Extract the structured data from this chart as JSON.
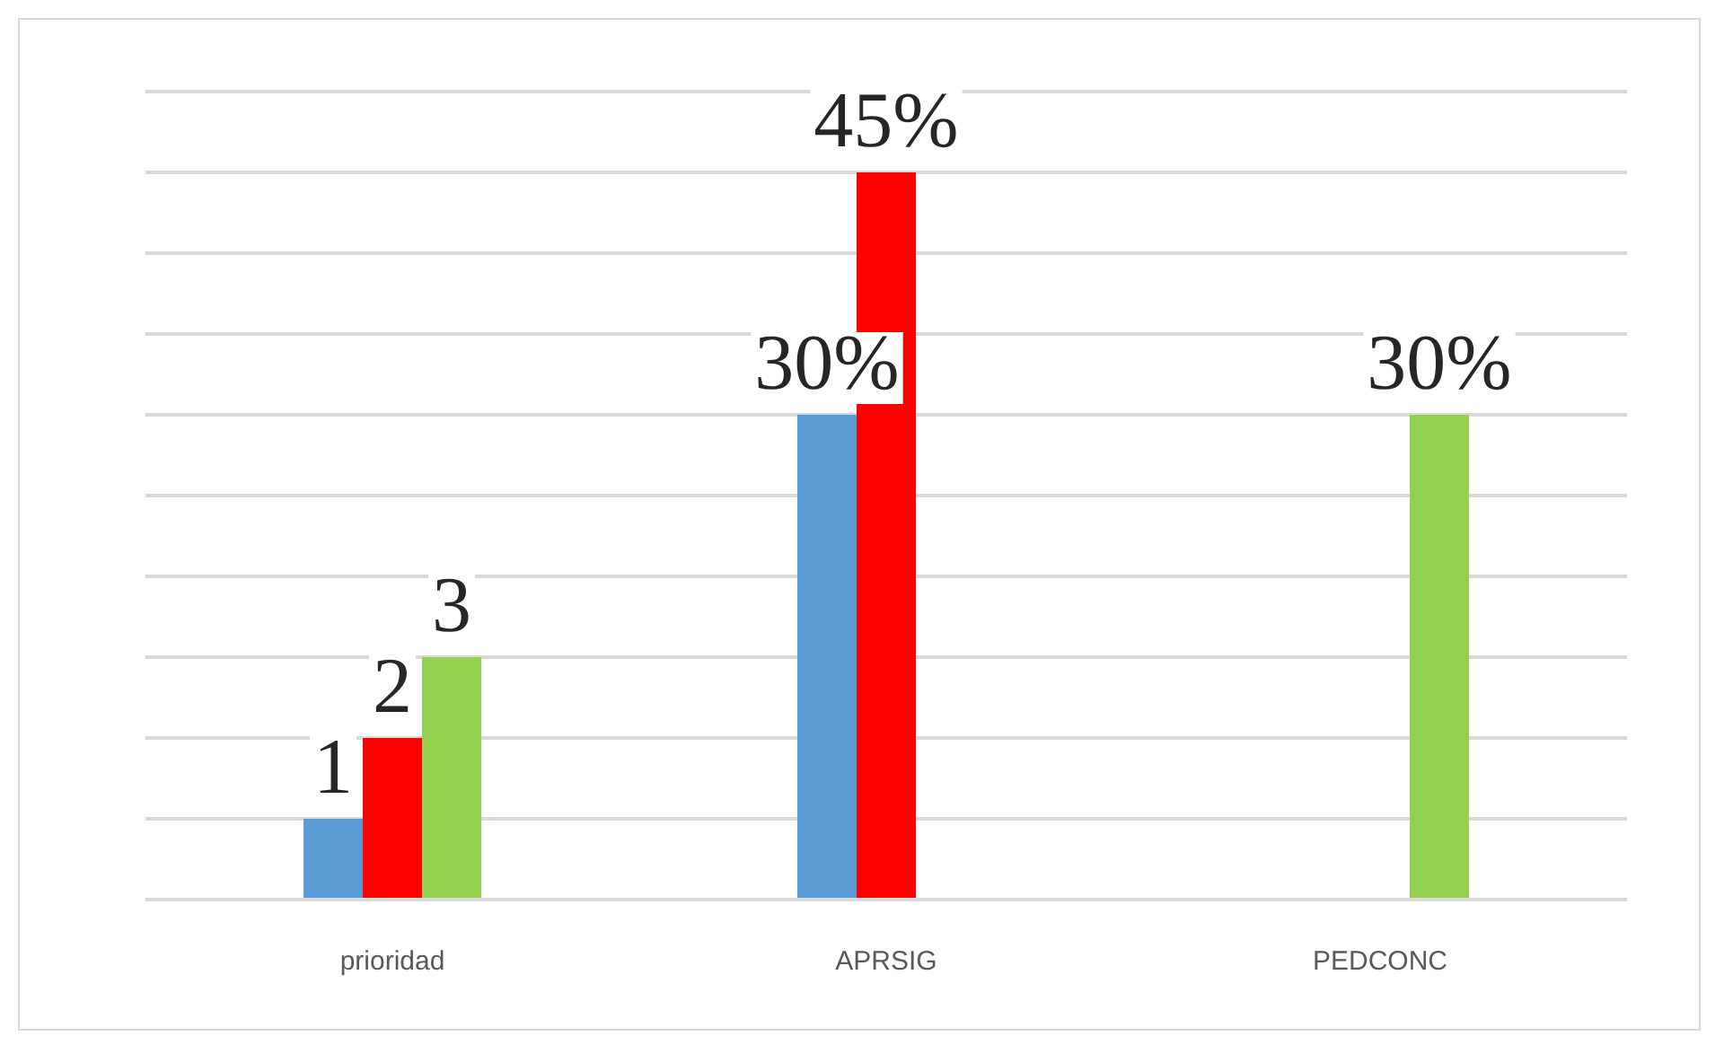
{
  "chart_data": {
    "type": "bar",
    "categories": [
      "prioridad",
      "APRSIG",
      "PEDCONC"
    ],
    "series": [
      {
        "color": "#5b9bd5",
        "values": [
          5,
          30,
          null
        ],
        "value_labels": [
          null,
          "30%",
          null
        ]
      },
      {
        "color": "#ff0000",
        "values": [
          10,
          45,
          null
        ],
        "value_labels": [
          null,
          "45%",
          null
        ]
      },
      {
        "color": "#92d050",
        "values": [
          15,
          null,
          30
        ],
        "value_labels": [
          null,
          null,
          "30%"
        ]
      }
    ],
    "annotations": [
      "1",
      "2",
      "3"
    ],
    "ylim": [
      0,
      50
    ],
    "yticks": [
      {
        "value": 0,
        "label": null
      },
      {
        "value": 5,
        "label": null
      },
      {
        "value": 10,
        "label": null
      },
      {
        "value": 15,
        "label": null
      },
      {
        "value": 20,
        "label": null
      },
      {
        "value": 25,
        "label": null
      },
      {
        "value": 30,
        "label": null
      },
      {
        "value": 35,
        "label": null
      },
      {
        "value": 40,
        "label": null
      },
      {
        "value": 45,
        "label": null
      },
      {
        "value": 50,
        "label": null
      }
    ],
    "grid": "y",
    "legend": false
  }
}
